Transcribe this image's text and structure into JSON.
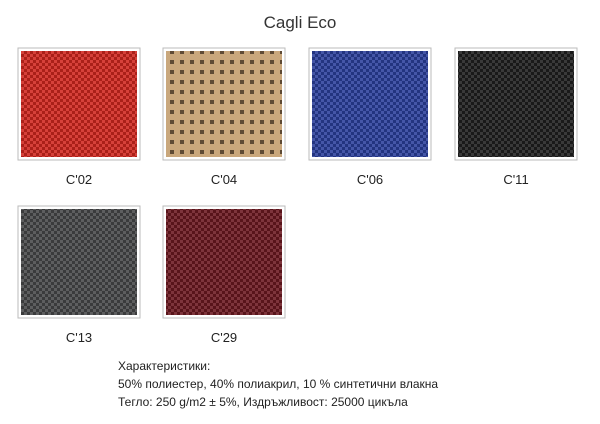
{
  "header": {
    "title": "Cagli Eco"
  },
  "swatches": [
    {
      "code": "C'02",
      "color": "#d0271f"
    },
    {
      "code": "C'04",
      "color": "#c9a77c"
    },
    {
      "code": "C'06",
      "color": "#2b3f9b"
    },
    {
      "code": "C'11",
      "color": "#1e1e1e"
    },
    {
      "code": "C'13",
      "color": "#474849"
    },
    {
      "code": "C'29",
      "color": "#6b1820"
    }
  ],
  "description": {
    "heading": "Характеристики:",
    "lines": [
      "50% полиестер, 40% полиакрил, 10 % синтетични влакна",
      "Тегло: 250 g/m2 ± 5%, Издръжливост: 25000 цикъла"
    ]
  }
}
